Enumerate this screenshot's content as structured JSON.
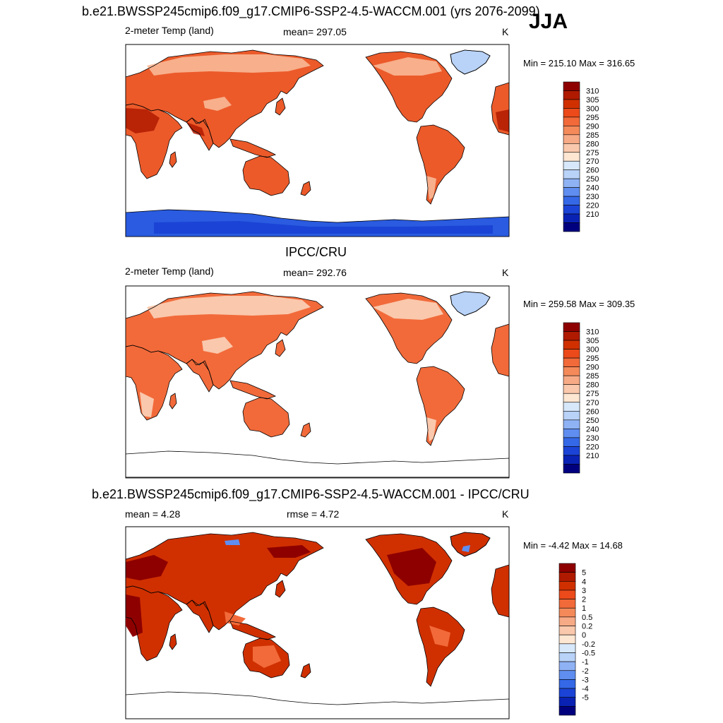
{
  "title_top": "b.e21.BWSSP245cmip6.f09_g17.CMIP6-SSP2-4.5-WACCM.001 (yrs 2076-2099)",
  "season": "JJA",
  "panels": [
    {
      "id": "model",
      "left_label": "2-meter Temp (land)",
      "center_label": "mean= 297.05",
      "units": "K",
      "minmax": "Min = 215.10 Max = 316.65",
      "legend_labels": [
        "310",
        "305",
        "300",
        "295",
        "290",
        "285",
        "280",
        "275",
        "270",
        "260",
        "250",
        "240",
        "230",
        "220",
        "210"
      ],
      "colors": [
        "#8e0000",
        "#b01a00",
        "#d03000",
        "#ec4a1a",
        "#f26a3a",
        "#f48a5a",
        "#f7aa86",
        "#fac8ac",
        "#fde6d2",
        "#d7e8fb",
        "#b8d2f8",
        "#8fb2f5",
        "#5f8ef0",
        "#3468e6",
        "#1b44d6",
        "#0a22b4",
        "#00007f"
      ]
    },
    {
      "id": "obs",
      "heading": "IPCC/CRU",
      "left_label": "2-meter Temp (land)",
      "center_label": "mean= 292.76",
      "units": "K",
      "minmax": "Min = 259.58 Max = 309.35",
      "legend_labels": [
        "310",
        "305",
        "300",
        "295",
        "290",
        "285",
        "280",
        "275",
        "270",
        "260",
        "250",
        "240",
        "230",
        "220",
        "210"
      ],
      "colors": [
        "#8e0000",
        "#b01a00",
        "#d03000",
        "#ec4a1a",
        "#f26a3a",
        "#f48a5a",
        "#f7aa86",
        "#fac8ac",
        "#fde6d2",
        "#d7e8fb",
        "#b8d2f8",
        "#8fb2f5",
        "#5f8ef0",
        "#3468e6",
        "#1b44d6",
        "#0a22b4",
        "#00007f"
      ]
    },
    {
      "id": "diff",
      "heading": "b.e21.BWSSP245cmip6.f09_g17.CMIP6-SSP2-4.5-WACCM.001 - IPCC/CRU",
      "left_label": "mean =   4.28",
      "center_label": "rmse =   4.72",
      "units": "K",
      "minmax": "Min =  -4.42 Max =  14.68",
      "legend_labels": [
        "5",
        "4",
        "3",
        "2",
        "1",
        "0.5",
        "0.2",
        "0",
        "-0.2",
        "-0.5",
        "-1",
        "-2",
        "-3",
        "-4",
        "-5"
      ],
      "colors": [
        "#8e0000",
        "#b01a00",
        "#d03000",
        "#ec4a1a",
        "#f26a3a",
        "#f48a5a",
        "#f7aa86",
        "#fac8ac",
        "#fde6d2",
        "#d7e8fb",
        "#b8d2f8",
        "#8fb2f5",
        "#5f8ef0",
        "#3468e6",
        "#1b44d6",
        "#0a22b4",
        "#00007f"
      ]
    }
  ],
  "chart_data": [
    {
      "type": "heatmap",
      "title": "b.e21.BWSSP245cmip6.f09_g17.CMIP6-SSP2-4.5-WACCM.001 (yrs 2076-2099)",
      "variable": "2-meter Temp (land)",
      "season": "JJA",
      "units": "K",
      "mean": 297.05,
      "min": 215.1,
      "max": 316.65,
      "contour_levels": [
        210,
        220,
        230,
        240,
        250,
        260,
        270,
        275,
        280,
        285,
        290,
        295,
        300,
        305,
        310
      ],
      "legend_placement": "right"
    },
    {
      "type": "heatmap",
      "title": "IPCC/CRU",
      "variable": "2-meter Temp (land)",
      "units": "K",
      "mean": 292.76,
      "min": 259.58,
      "max": 309.35,
      "contour_levels": [
        210,
        220,
        230,
        240,
        250,
        260,
        270,
        275,
        280,
        285,
        290,
        295,
        300,
        305,
        310
      ],
      "legend_placement": "right"
    },
    {
      "type": "heatmap",
      "title": "b.e21.BWSSP245cmip6.f09_g17.CMIP6-SSP2-4.5-WACCM.001 - IPCC/CRU",
      "units": "K",
      "mean": 4.28,
      "rmse": 4.72,
      "min": -4.42,
      "max": 14.68,
      "contour_levels": [
        -5,
        -4,
        -3,
        -2,
        -1,
        -0.5,
        -0.2,
        0,
        0.2,
        0.5,
        1,
        2,
        3,
        4,
        5
      ],
      "legend_placement": "right"
    }
  ]
}
